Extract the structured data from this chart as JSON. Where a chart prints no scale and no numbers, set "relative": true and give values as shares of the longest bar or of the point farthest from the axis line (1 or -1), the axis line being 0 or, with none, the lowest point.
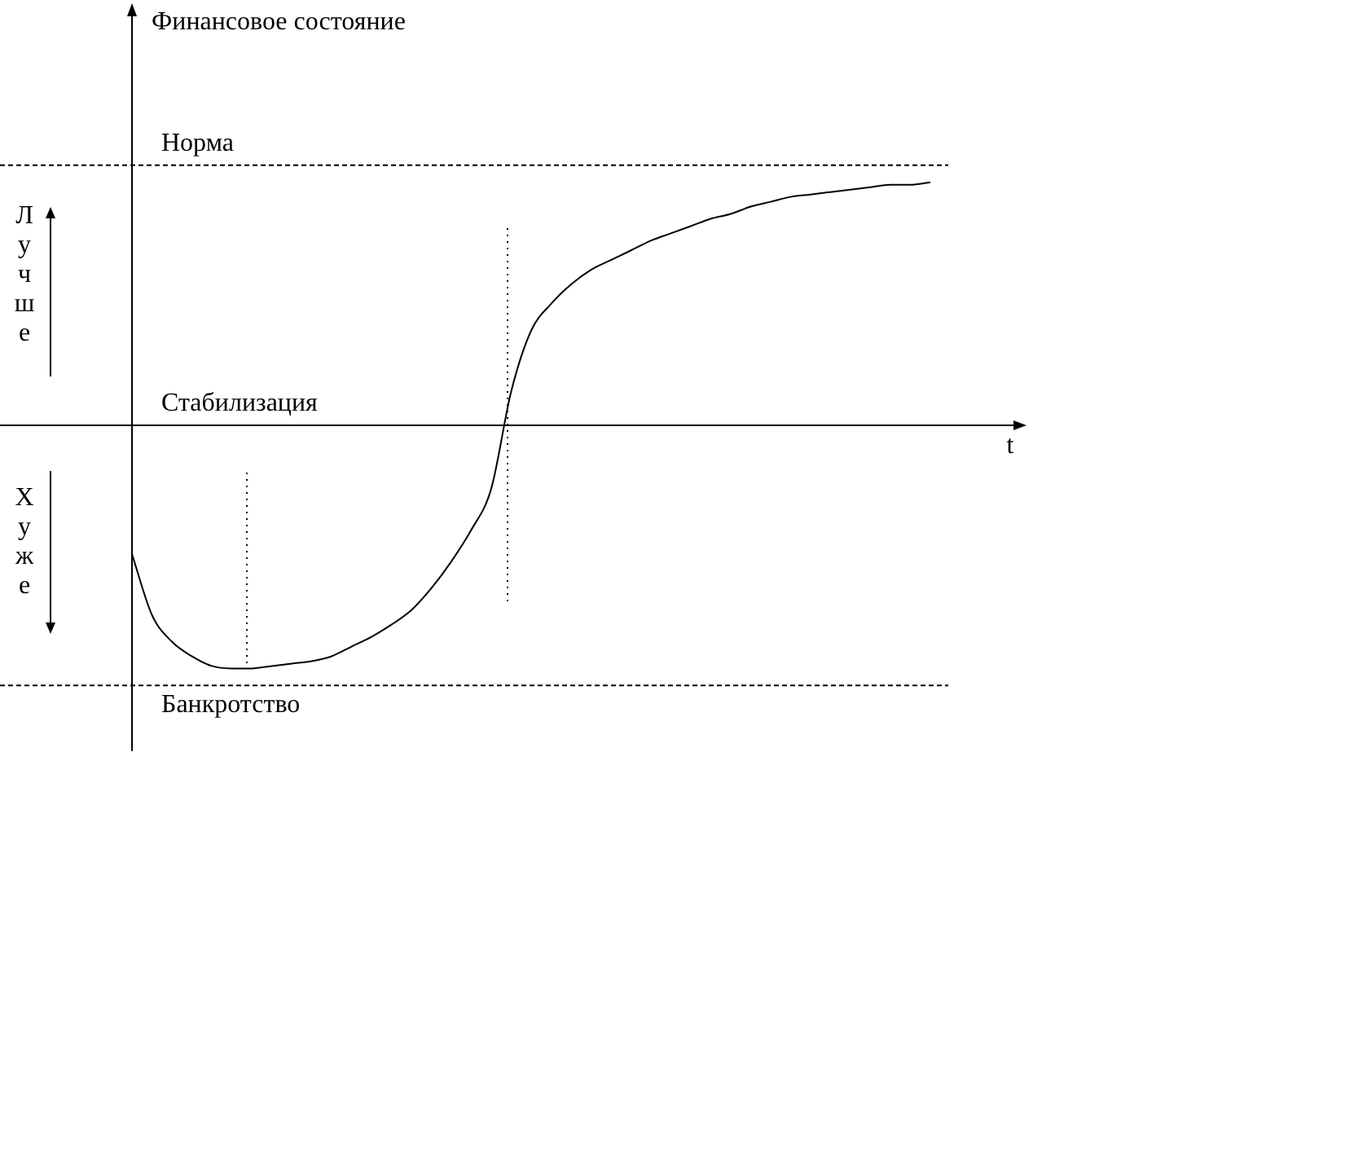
{
  "chart_data": {
    "type": "line",
    "relative": true,
    "xlabel": "t",
    "categories": [
      null,
      null,
      null,
      null,
      null,
      null,
      null,
      null,
      null,
      null,
      null,
      null,
      null,
      null,
      null,
      null,
      null,
      null,
      null,
      null,
      null,
      null,
      null,
      null,
      null,
      null,
      null,
      null,
      null,
      null,
      null,
      null,
      null,
      null,
      null,
      null,
      null,
      null,
      null,
      null,
      null
    ],
    "series": [
      {
        "color": "#000000",
        "values": [
          -0.53,
          -0.78,
          -0.89,
          -0.95,
          -0.99,
          -1.0,
          -1.0,
          -0.99,
          -0.98,
          -0.97,
          -0.95,
          -0.91,
          -0.87,
          -0.82,
          -0.76,
          -0.67,
          -0.56,
          -0.43,
          -0.26,
          0.14,
          0.39,
          0.5,
          0.58,
          0.64,
          0.68,
          0.72,
          0.76,
          0.79,
          0.82,
          0.85,
          0.87,
          0.9,
          0.92,
          0.94,
          0.95,
          0.96,
          0.97,
          0.98,
          0.99,
          0.99,
          1.0
        ]
      }
    ],
    "marker": "none",
    "line_style": "solid",
    "legend": false,
    "ref_lines": [
      {
        "axis": "y",
        "value": 1.07,
        "label": "Норма",
        "line_style": "dashed"
      },
      {
        "axis": "y",
        "value": 0,
        "label": "Стабилизация",
        "line_style": "solid"
      },
      {
        "axis": "y",
        "value": -1.07,
        "label": "Банкротство",
        "line_style": "dashed"
      }
    ],
    "annotations": [
      "Финансовое состояние",
      "Лучше",
      "Хуже"
    ]
  }
}
